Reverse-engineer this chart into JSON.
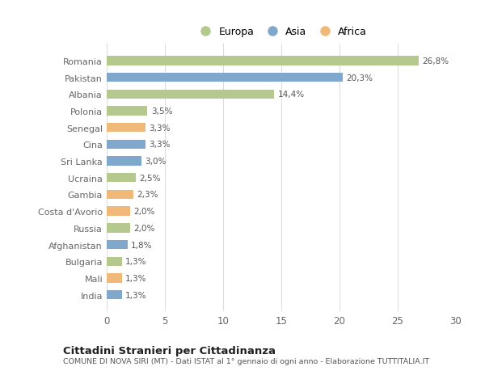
{
  "categories": [
    "Romania",
    "Pakistan",
    "Albania",
    "Polonia",
    "Senegal",
    "Cina",
    "Sri Lanka",
    "Ucraina",
    "Gambia",
    "Costa d'Avorio",
    "Russia",
    "Afghanistan",
    "Bulgaria",
    "Mali",
    "India"
  ],
  "values": [
    26.8,
    20.3,
    14.4,
    3.5,
    3.3,
    3.3,
    3.0,
    2.5,
    2.3,
    2.0,
    2.0,
    1.8,
    1.3,
    1.3,
    1.3
  ],
  "continents": [
    "Europa",
    "Asia",
    "Europa",
    "Europa",
    "Africa",
    "Asia",
    "Asia",
    "Europa",
    "Africa",
    "Africa",
    "Europa",
    "Asia",
    "Europa",
    "Africa",
    "Asia"
  ],
  "colors": {
    "Europa": "#b5c98e",
    "Asia": "#7fa8cc",
    "Africa": "#f0b97a"
  },
  "legend_order": [
    "Europa",
    "Asia",
    "Africa"
  ],
  "title": "Cittadini Stranieri per Cittadinanza",
  "subtitle": "COMUNE DI NOVA SIRI (MT) - Dati ISTAT al 1° gennaio di ogni anno - Elaborazione TUTTITALIA.IT",
  "xlim": [
    0,
    30
  ],
  "xticks": [
    0,
    5,
    10,
    15,
    20,
    25,
    30
  ],
  "bg_color": "#ffffff",
  "grid_color": "#dddddd",
  "label_color": "#666666",
  "bar_label_color": "#555555"
}
